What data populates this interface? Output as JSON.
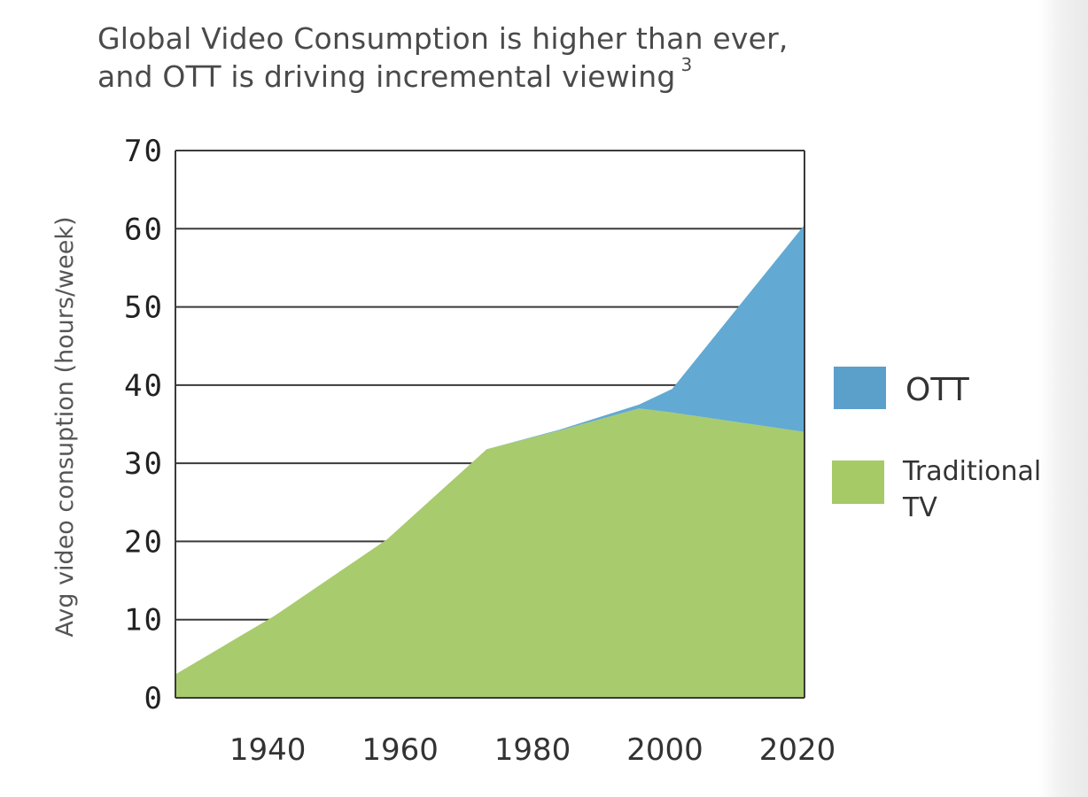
{
  "title": {
    "line1": "Global Video Consumption is higher than ever,",
    "line2": "and OTT is driving incremental viewing",
    "footnote": "3"
  },
  "chart_data": {
    "type": "area",
    "stacked": true,
    "x": [
      1925,
      1940,
      1957,
      1972,
      1983,
      1995,
      2000,
      2020
    ],
    "series": [
      {
        "name": "Traditional TV",
        "color": "#a8cb6e",
        "values": [
          3,
          10.5,
          20.3,
          31.8,
          34.2,
          37,
          36.5,
          34
        ]
      },
      {
        "name": "OTT",
        "color": "#62aad3",
        "values": [
          0,
          0,
          0,
          0,
          0.1,
          0.5,
          3,
          26.5
        ]
      }
    ],
    "xlim": [
      1925,
      2020
    ],
    "ylim": [
      0,
      70
    ],
    "x_ticks": [
      1940,
      1960,
      1980,
      2000,
      2020
    ],
    "y_ticks": [
      0,
      10,
      20,
      30,
      40,
      50,
      60,
      70
    ],
    "ylabel": "Avg video consuption (hours/week)",
    "xlabel": "",
    "grid": "horizontal",
    "legend": {
      "placement": "right",
      "entries": [
        {
          "label": "OTT",
          "color": "#5b9fcb",
          "lines": [
            "OTT"
          ]
        },
        {
          "label": "Traditional TV",
          "color": "#a6ca66",
          "lines": [
            "Traditional",
            "TV"
          ]
        }
      ]
    }
  }
}
